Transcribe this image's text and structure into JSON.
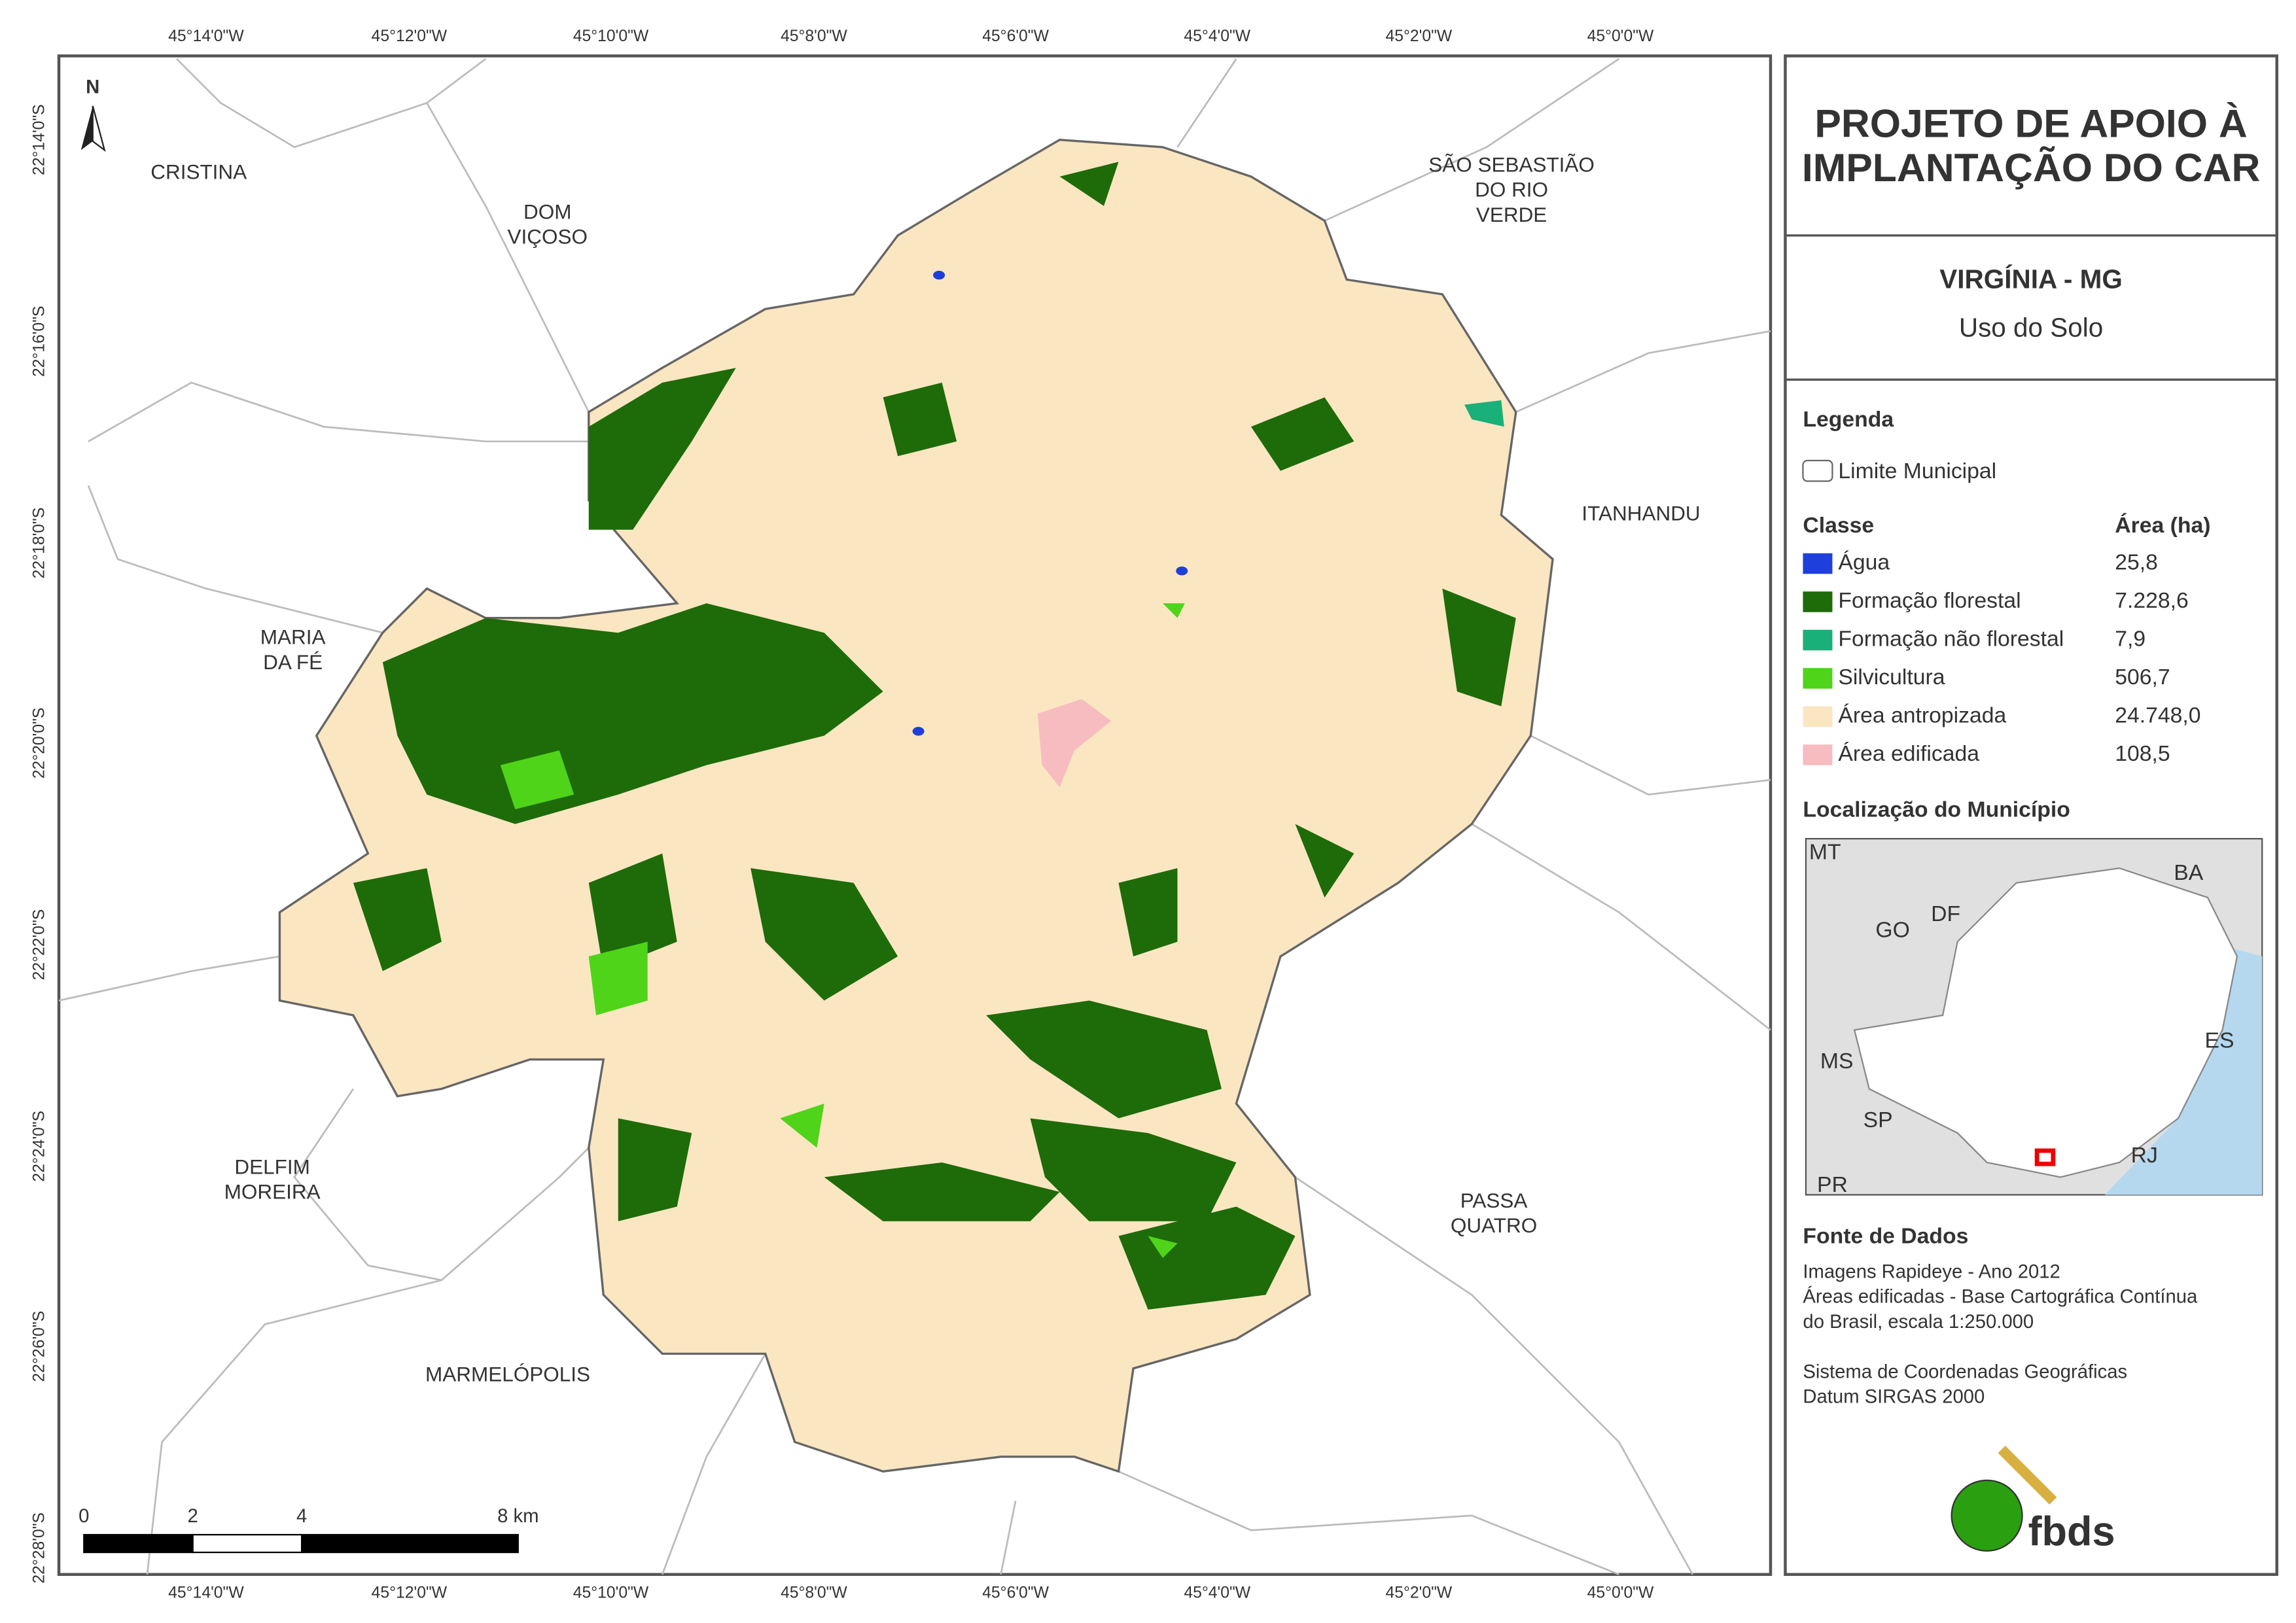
{
  "header": {
    "title_lines": [
      "PROJETO DE APOIO À",
      "IMPLANTAÇÃO DO CAR"
    ]
  },
  "map_title": "VIRGÍNIA - MG",
  "subtitle": "Uso do Solo",
  "legend": {
    "title": "Legenda",
    "boundary": "Limite Municipal",
    "class_header": "Classe",
    "area_header": "Área (ha)",
    "classes": [
      {
        "name": "Água",
        "area": "25,8",
        "color": "#1f3fdc"
      },
      {
        "name": "Formação florestal",
        "area": "7.228,6",
        "color": "#1e6b0a"
      },
      {
        "name": "Formação não florestal",
        "area": "7,9",
        "color": "#1ab07a"
      },
      {
        "name": "Silvicultura",
        "area": "506,7",
        "color": "#4fd41a"
      },
      {
        "name": "Área antropizada",
        "area": "24.748,0",
        "color": "#fbe6c2"
      },
      {
        "name": "Área edificada",
        "area": "108,5",
        "color": "#f7bcc0"
      }
    ]
  },
  "location": {
    "title": "Localização do Município",
    "labels": [
      "MT",
      "BA",
      "DF",
      "GO",
      "MS",
      "ES",
      "SP",
      "RJ",
      "PR"
    ]
  },
  "sources": {
    "title": "Fonte de Dados",
    "lines": [
      "Imagens Rapideye - Ano 2012",
      "Áreas edificadas - Base Cartográfica Contínua",
      "do Brasil, escala 1:250.000",
      "Sistema de Coordenadas Geográficas",
      "Datum SIRGAS 2000"
    ]
  },
  "logo": "fbds",
  "north": "N",
  "coordinates": {
    "lon": [
      "45°14'0\"W",
      "45°12'0\"W",
      "45°10'0\"W",
      "45°8'0\"W",
      "45°6'0\"W",
      "45°4'0\"W",
      "45°2'0\"W",
      "45°0'0\"W"
    ],
    "lat": [
      "22°14'0\"S",
      "22°16'0\"S",
      "22°18'0\"S",
      "22°20'0\"S",
      "22°22'0\"S",
      "22°24'0\"S",
      "22°26'0\"S",
      "22°28'0\"S"
    ]
  },
  "municipalities": [
    [
      "CRISTINA"
    ],
    [
      "DOM",
      "VIÇOSO"
    ],
    [
      "SÃO SEBASTIÃO",
      "DO RIO",
      "VERDE"
    ],
    [
      "ITANHANDU"
    ],
    [
      "MARIA",
      "DA FÉ"
    ],
    [
      "DELFIM",
      "MOREIRA"
    ],
    [
      "PASSA",
      "QUATRO"
    ],
    [
      "MARMELÓPOLIS"
    ]
  ],
  "scale_bar": {
    "labels": [
      "0",
      "2",
      "4",
      "8 km"
    ]
  }
}
